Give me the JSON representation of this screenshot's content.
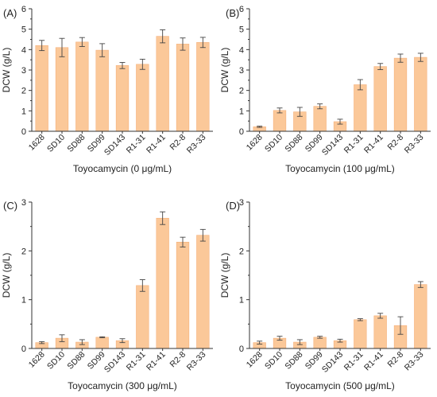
{
  "colors": {
    "bar": "#fbc899",
    "bar_edge": "#f4b07a",
    "axis": "#333333",
    "error": "#444444"
  },
  "chart_data": [
    {
      "type": "bar",
      "panel": "(A)",
      "categories": [
        "1628",
        "SD10",
        "SD88",
        "SD99",
        "SD143",
        "R1-31",
        "R1-41",
        "R2-8",
        "R3-33"
      ],
      "values": [
        4.2,
        4.1,
        4.37,
        3.97,
        3.22,
        3.28,
        4.65,
        4.27,
        4.35
      ],
      "errors": [
        0.25,
        0.45,
        0.22,
        0.32,
        0.15,
        0.25,
        0.32,
        0.3,
        0.25
      ],
      "xlabel": "Toyocamycin (0 μg/mL)",
      "ylabel": "DCW (g/L)",
      "ylim": [
        0,
        6
      ],
      "yticks": [
        "0",
        "1",
        "2",
        "3",
        "4",
        "5",
        "6"
      ],
      "grid": false
    },
    {
      "type": "bar",
      "panel": "(B)",
      "categories": [
        "1628",
        "SD10",
        "SD88",
        "SD99",
        "SD143",
        "R1-31",
        "R1-41",
        "R2-8",
        "R3-33"
      ],
      "values": [
        0.22,
        1.02,
        0.95,
        1.22,
        0.47,
        2.28,
        3.17,
        3.58,
        3.62
      ],
      "errors": [
        0.03,
        0.12,
        0.22,
        0.12,
        0.12,
        0.25,
        0.15,
        0.2,
        0.2
      ],
      "xlabel": "Toyocamycin (100 μg/mL)",
      "ylabel": "DCW (g/L)",
      "ylim": [
        0,
        6
      ],
      "yticks": [
        "0",
        "1",
        "2",
        "3",
        "4",
        "5",
        "6"
      ],
      "grid": false
    },
    {
      "type": "bar",
      "panel": "(C)",
      "categories": [
        "1628",
        "SD10",
        "SD88",
        "SD99",
        "SD143",
        "R1-31",
        "R1-41",
        "R2-8",
        "R3-33"
      ],
      "values": [
        0.12,
        0.21,
        0.13,
        0.23,
        0.16,
        1.29,
        2.67,
        2.18,
        2.32
      ],
      "errors": [
        0.02,
        0.07,
        0.05,
        0.01,
        0.04,
        0.12,
        0.13,
        0.1,
        0.12
      ],
      "xlabel": "Toyocamycin (300 μg/mL)",
      "ylabel": "DCW (g/L)",
      "ylim": [
        0,
        3
      ],
      "yticks": [
        "0",
        "1",
        "2",
        "3"
      ],
      "grid": false
    },
    {
      "type": "bar",
      "panel": "(D)",
      "categories": [
        "1628",
        "SD10",
        "SD88",
        "SD99",
        "SD143",
        "R1-31",
        "R1-41",
        "R2-8",
        "R3-33"
      ],
      "values": [
        0.12,
        0.21,
        0.13,
        0.23,
        0.16,
        0.59,
        0.67,
        0.47,
        1.31
      ],
      "errors": [
        0.03,
        0.04,
        0.05,
        0.02,
        0.03,
        0.02,
        0.05,
        0.18,
        0.06
      ],
      "xlabel": "Toyocamycin (500 μg/mL)",
      "ylabel": "DCW (g/L)",
      "ylim": [
        0,
        3
      ],
      "yticks": [
        "0",
        "1",
        "2",
        "3"
      ],
      "grid": false
    }
  ]
}
